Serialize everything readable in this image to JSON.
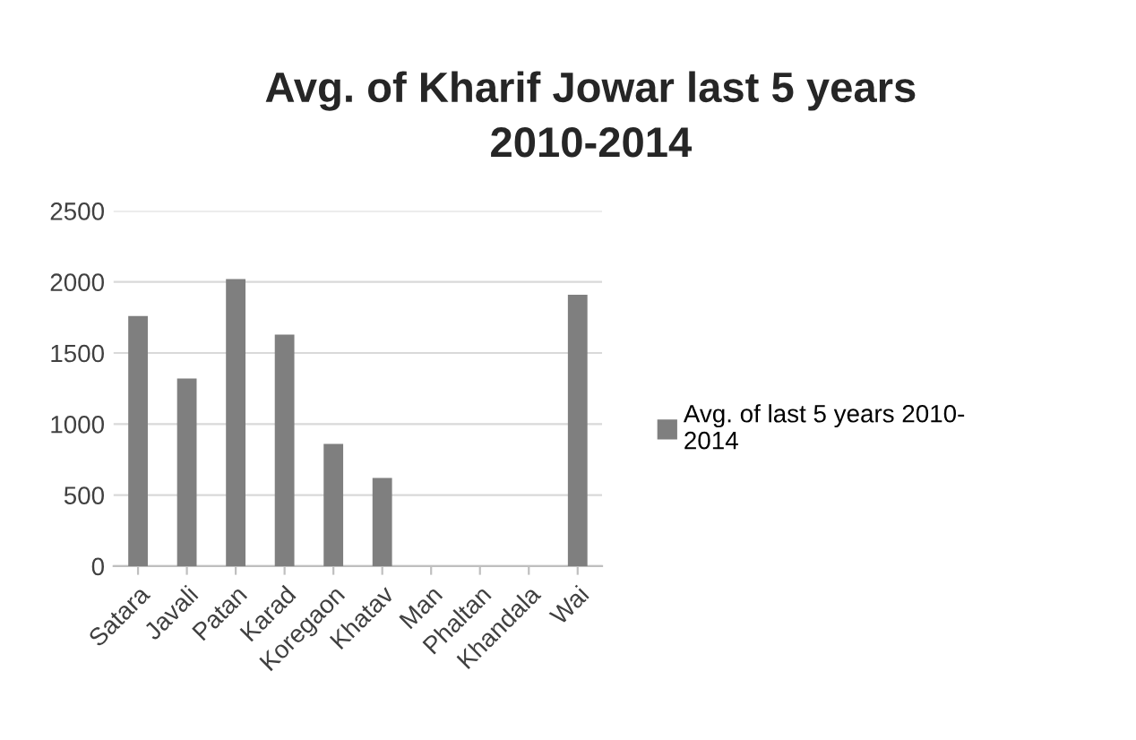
{
  "chart_data": {
    "type": "bar",
    "title": "Avg. of Kharif Jowar last 5 years\n2010-2014",
    "categories": [
      "Satara",
      "Javali",
      "Patan",
      "Karad",
      "Koregaon",
      "Khatav",
      "Man",
      "Phaltan",
      "Khandala",
      "Wai"
    ],
    "series": [
      {
        "name": "Avg. of last 5 years 2010-\n2014",
        "color": "#7f7f7f",
        "values": [
          1760,
          1320,
          2020,
          1630,
          860,
          620,
          0,
          0,
          0,
          1910
        ]
      }
    ],
    "ylim": [
      0,
      2500
    ],
    "yticks": [
      0,
      500,
      1000,
      1500,
      2000,
      2500
    ],
    "grid": "y",
    "legend": "right"
  }
}
